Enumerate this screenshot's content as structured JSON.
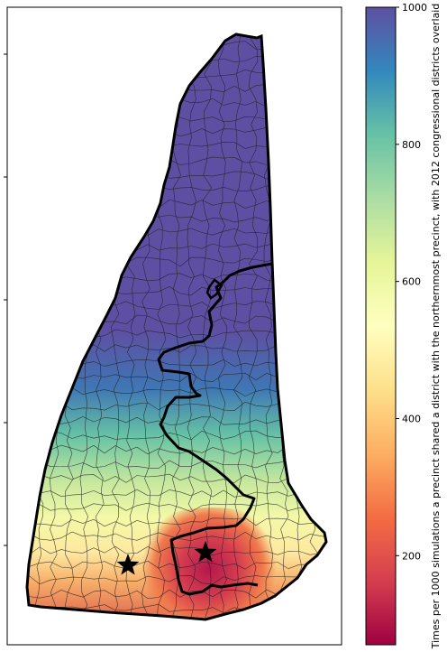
{
  "colorbar": {
    "label": "Times per 1000 simulations a precinct shared a district with the northernmost precinct, with 2012 congressional districts overlaid",
    "ticks": [
      {
        "value": 1000,
        "label": "1000"
      },
      {
        "value": 800,
        "label": "800"
      },
      {
        "value": 600,
        "label": "600"
      },
      {
        "value": 400,
        "label": "400"
      },
      {
        "value": 200,
        "label": "200"
      }
    ],
    "range": [
      70,
      1000
    ],
    "colormap": "Spectral",
    "stops": [
      "#9e0142",
      "#d53e4f",
      "#f46d43",
      "#fdae61",
      "#fee08b",
      "#ffffbf",
      "#e6f598",
      "#abdda4",
      "#66c2a5",
      "#3288bd",
      "#5e4fa2"
    ]
  },
  "map": {
    "region": "New Hampshire precincts",
    "markers": [
      "star",
      "star"
    ],
    "district_outline_color": "#000000",
    "precinct_outline_color": "#222222"
  }
}
